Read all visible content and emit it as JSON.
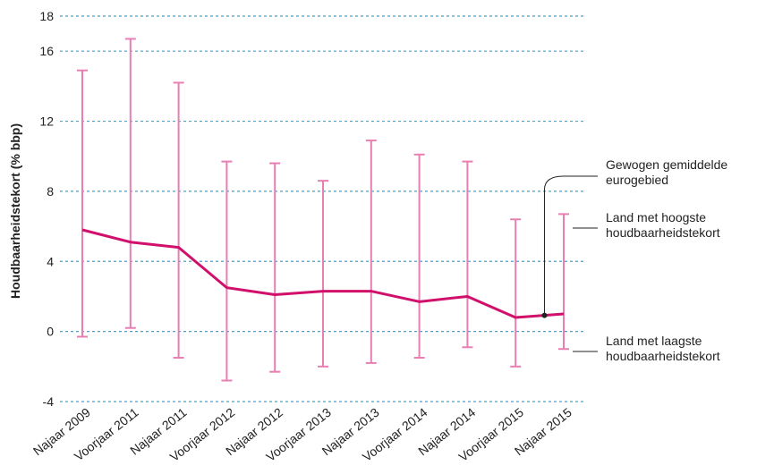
{
  "chart_data": {
    "type": "line",
    "ylabel": "Houdbaarheidstekort (% bbp)",
    "ylim": [
      -4,
      18
    ],
    "yticks": [
      -4,
      0,
      4,
      8,
      12,
      16,
      18
    ],
    "categories": [
      "Najaar 2009",
      "Voorjaar 2011",
      "Najaar 2011",
      "Voorjaar 2012",
      "Najaar 2012",
      "Voorjaar 2013",
      "Najaar 2013",
      "Voorjaar 2014",
      "Najaar 2014",
      "Voorjaar 2015",
      "Najaar 2015"
    ],
    "series": [
      {
        "name": "Gewogen gemiddelde eurogebied",
        "values": [
          5.8,
          5.1,
          4.8,
          2.5,
          2.1,
          2.3,
          2.3,
          1.7,
          2.0,
          0.8,
          1.0
        ]
      },
      {
        "name": "Land met hoogste houdbaarheidstekort",
        "values": [
          14.9,
          16.7,
          14.2,
          9.7,
          9.6,
          8.6,
          10.9,
          10.1,
          9.7,
          6.4,
          6.7
        ]
      },
      {
        "name": "Land met laagste houdbaarheidstekort",
        "values": [
          -0.3,
          0.2,
          -1.5,
          -2.8,
          -2.3,
          -2.0,
          -1.8,
          -1.5,
          -0.9,
          -2.0,
          -1.0
        ]
      }
    ],
    "annotations": [
      {
        "lines": [
          "Gewogen gemiddelde",
          "eurogebied"
        ]
      },
      {
        "lines": [
          "Land met hoogste",
          "houdbaarheidstekort"
        ]
      },
      {
        "lines": [
          "Land met laagste",
          "houdbaarheidstekort"
        ]
      }
    ],
    "grid": true,
    "colors": {
      "line": "#d1106b",
      "range": "#e87fb3",
      "grid": "#3aa6d9",
      "marker": "#222222"
    }
  }
}
